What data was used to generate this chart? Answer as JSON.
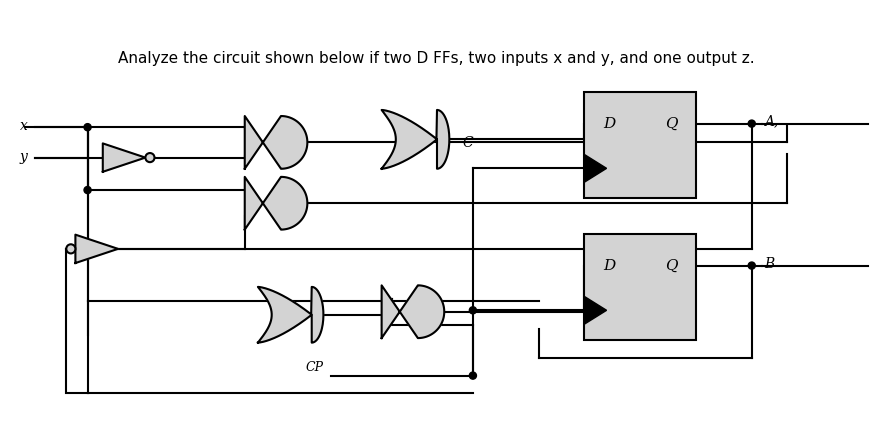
{
  "title": "Analyze the circuit shown below if two D FFs, two inputs x and y, and one output z.",
  "bg_color": "#ffffff",
  "gate_fill": "#d3d3d3",
  "gate_edge": "#000000",
  "line_color": "#000000",
  "lw": 1.5,
  "dot_r": 3.5,
  "labels": {
    "x": "x",
    "y": "y",
    "A": "A,",
    "B": "B",
    "C": "C",
    "CP": "CP",
    "D": "D",
    "Q": "Q"
  },
  "title_fontsize": 11,
  "label_fontsize": 11
}
